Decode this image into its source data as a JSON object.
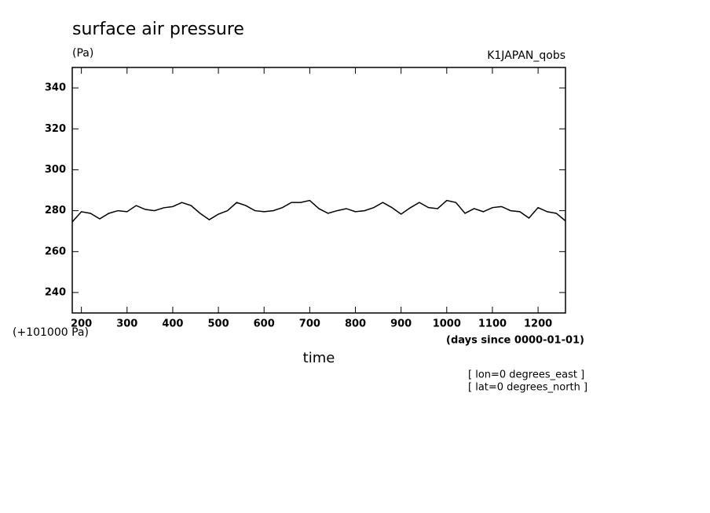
{
  "chart_data": {
    "type": "line",
    "title": "surface air pressure",
    "y_unit_label": "(Pa)",
    "dataset_label": "K1JAPAN_qobs",
    "y_offset_label": "(+101000 Pa)",
    "x_unit_label": "(days since 0000-01-01)",
    "xlabel": "time",
    "annotations": [
      "[ lon=0 degrees_east ]",
      "[ lat=0 degrees_north ]"
    ],
    "xlim": [
      180,
      1260
    ],
    "ylim": [
      230,
      350
    ],
    "xticks": [
      200,
      300,
      400,
      500,
      600,
      700,
      800,
      900,
      1000,
      1100,
      1200
    ],
    "yticks": [
      240,
      260,
      280,
      300,
      320,
      340
    ],
    "x": [
      180,
      200,
      220,
      240,
      260,
      280,
      300,
      320,
      340,
      360,
      380,
      400,
      420,
      440,
      460,
      480,
      500,
      520,
      540,
      560,
      580,
      600,
      620,
      640,
      660,
      680,
      700,
      720,
      740,
      760,
      780,
      800,
      820,
      840,
      860,
      880,
      900,
      920,
      940,
      960,
      980,
      1000,
      1020,
      1040,
      1060,
      1080,
      1100,
      1120,
      1140,
      1160,
      1180,
      1200,
      1220,
      1240,
      1260
    ],
    "series": [
      {
        "color": "#000000",
        "values": [
          274.5,
          279.5,
          278.7,
          276,
          278.7,
          280,
          279.5,
          282.5,
          280.6,
          280,
          281.4,
          282,
          284,
          282.5,
          278.7,
          275.6,
          278.3,
          280,
          284,
          282.5,
          280,
          279.5,
          280,
          281.5,
          284,
          284,
          285,
          281,
          278.7,
          280,
          281,
          279.5,
          280,
          281.5,
          284,
          281.5,
          278.3,
          281.4,
          284,
          281.5,
          281,
          285,
          284,
          278.7,
          281,
          279.5,
          281.5,
          282,
          280,
          279.5,
          276.4,
          281.5,
          279.5,
          278.7,
          275
        ]
      }
    ]
  }
}
